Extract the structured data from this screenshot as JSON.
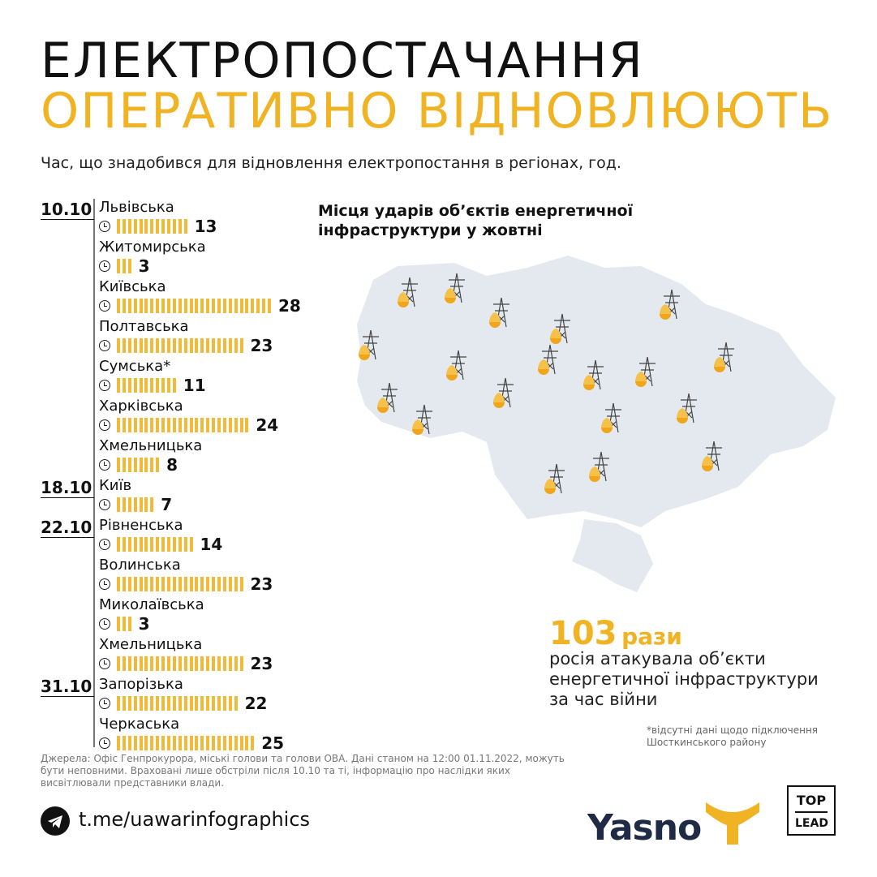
{
  "header": {
    "title_line1": "ЕЛЕКТРОПОСТАЧАННЯ",
    "title_line2": "ОПЕРАТИВНО ВІДНОВЛЮЮТЬ",
    "subtitle": "Час, що знадобився для відновлення електропостання в регіонах, год."
  },
  "colors": {
    "accent": "#f0b323",
    "map": "#e4e9f0",
    "text": "#111111"
  },
  "chart_data": {
    "type": "bar",
    "orientation": "horizontal",
    "unit": "год.",
    "dates": [
      {
        "label": "10.10",
        "start_index": 0
      },
      {
        "label": "18.10",
        "start_index": 7
      },
      {
        "label": "22.10",
        "start_index": 8
      },
      {
        "label": "31.10",
        "start_index": 12
      }
    ],
    "categories": [
      "Львівська",
      "Житомирська",
      "Київська",
      "Полтавська",
      "Сумська*",
      "Харківська",
      "Хмельницька",
      "Київ",
      "Рівненська",
      "Волинська",
      "Миколаївська",
      "Хмельницька",
      "Запорізька",
      "Черкаська"
    ],
    "values": [
      13,
      3,
      28,
      23,
      11,
      24,
      8,
      7,
      14,
      23,
      3,
      23,
      22,
      25
    ]
  },
  "map": {
    "title_line1": "Місця ударів об’єктів енергетичної",
    "title_line2": "інфраструктури у жовтні",
    "icon": "power-tower-fire-icon"
  },
  "stat": {
    "number": "103",
    "unit": "рази",
    "line1": "росія атакувала об’єкти",
    "line2": "енергетичної інфраструктури",
    "line3": "за час війни"
  },
  "note": {
    "line1": "*відсутні дані щодо підключення",
    "line2": "Шосткинського району"
  },
  "sources": "Джерела: Офіс Генпрокурора, міські голови та голови ОВА. Дані станом на 12:00 01.11.2022, можуть бути неповними. Враховані лише обстріли після 10.10 та ті, інформацію про наслідки яких висвітлювали представники влади.",
  "footer": {
    "telegram_link": "t.me/uawarinfographics",
    "logo1": "Yasno",
    "logo2_line1": "TOP",
    "logo2_line2": "LEAD"
  }
}
